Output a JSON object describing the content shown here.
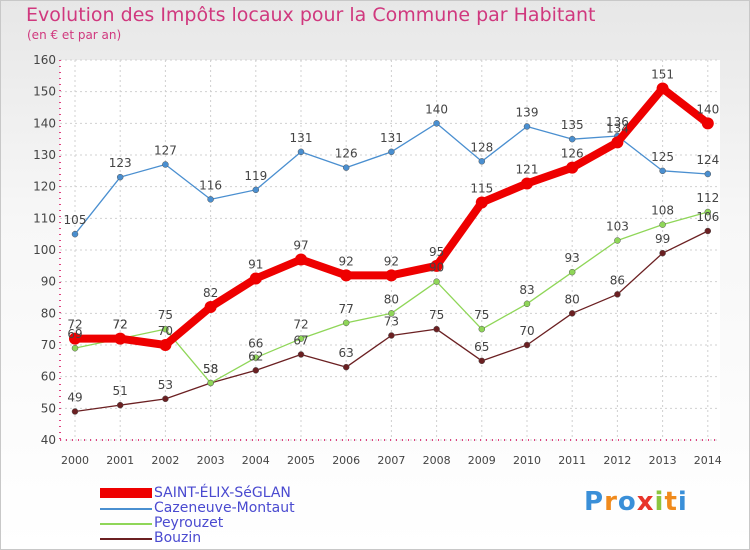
{
  "header": {
    "title": "Evolution des Impôts locaux pour la Commune par Habitant",
    "subtitle": "(en € et par an)"
  },
  "logo": {
    "text": "Proxiti"
  },
  "chart_data": {
    "type": "line",
    "title": "Evolution des Impôts locaux pour la Commune par Habitant",
    "subtitle": "(en € et par an)",
    "x": [
      "2000",
      "2001",
      "2002",
      "2003",
      "2004",
      "2005",
      "2006",
      "2007",
      "2008",
      "2009",
      "2010",
      "2011",
      "2012",
      "2013",
      "2014"
    ],
    "ylim": [
      40,
      160
    ],
    "yticks": [
      40,
      50,
      60,
      70,
      80,
      90,
      100,
      110,
      120,
      130,
      140,
      150,
      160
    ],
    "grid": true,
    "legend_position": "bottom-left",
    "series": [
      {
        "name": "SAINT-ÉLIX-SéGLAN",
        "color": "#ee0000",
        "values": [
          72,
          72,
          70,
          82,
          91,
          97,
          92,
          92,
          95,
          115,
          121,
          126,
          134,
          151,
          140
        ]
      },
      {
        "name": "Cazeneuve-Montaut",
        "color": "#4a8fd0",
        "values": [
          105,
          123,
          127,
          116,
          119,
          131,
          126,
          131,
          140,
          128,
          139,
          135,
          136,
          125,
          124
        ]
      },
      {
        "name": "Peyrouzet",
        "color": "#8fd658",
        "values": [
          69,
          72,
          75,
          58,
          66,
          72,
          77,
          80,
          90,
          75,
          83,
          93,
          103,
          108,
          112
        ]
      },
      {
        "name": "Bouzin",
        "color": "#6b2022",
        "values": [
          49,
          51,
          53,
          58,
          62,
          67,
          63,
          73,
          75,
          65,
          70,
          80,
          86,
          99,
          106
        ]
      }
    ]
  }
}
